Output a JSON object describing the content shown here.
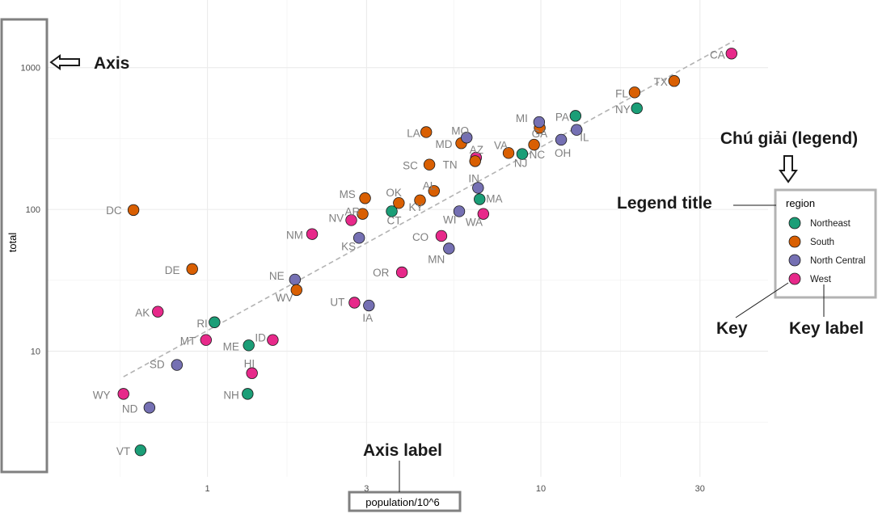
{
  "chart_data": {
    "type": "scatter",
    "xlabel": "population/10^6",
    "ylabel": "total",
    "x_scale": "log10",
    "y_scale": "log10",
    "x_ticks": [
      1,
      3,
      10,
      30
    ],
    "y_ticks": [
      10,
      100,
      1000
    ],
    "xlim": [
      0.33,
      48
    ],
    "ylim": [
      1.3,
      3000
    ],
    "grid": true,
    "trend_line": {
      "style": "dashed",
      "color": "#b3b3b3",
      "from": [
        0.56,
        6.6
      ],
      "to": [
        38,
        1550
      ]
    },
    "legend": {
      "title": "region",
      "position": "right",
      "entries": [
        {
          "name": "Northeast",
          "color": "#1b9e77"
        },
        {
          "name": "South",
          "color": "#d95f02"
        },
        {
          "name": "North Central",
          "color": "#7570b3"
        },
        {
          "name": "West",
          "color": "#e7298a"
        }
      ]
    },
    "points": [
      {
        "label": "AL",
        "region": "South",
        "x": 4.78,
        "y": 135
      },
      {
        "label": "AK",
        "region": "West",
        "x": 0.71,
        "y": 19
      },
      {
        "label": "AZ",
        "region": "West",
        "x": 6.39,
        "y": 232
      },
      {
        "label": "AR",
        "region": "South",
        "x": 2.92,
        "y": 93
      },
      {
        "label": "CA",
        "region": "West",
        "x": 37.3,
        "y": 1257
      },
      {
        "label": "CO",
        "region": "West",
        "x": 5.03,
        "y": 65
      },
      {
        "label": "CT",
        "region": "Northeast",
        "x": 3.57,
        "y": 97
      },
      {
        "label": "DE",
        "region": "South",
        "x": 0.9,
        "y": 38
      },
      {
        "label": "DC",
        "region": "South",
        "x": 0.6,
        "y": 99
      },
      {
        "label": "FL",
        "region": "South",
        "x": 19.1,
        "y": 669
      },
      {
        "label": "GA",
        "region": "South",
        "x": 9.92,
        "y": 376
      },
      {
        "label": "HI",
        "region": "West",
        "x": 1.36,
        "y": 7
      },
      {
        "label": "ID",
        "region": "West",
        "x": 1.57,
        "y": 12
      },
      {
        "label": "IL",
        "region": "North Central",
        "x": 12.8,
        "y": 364
      },
      {
        "label": "IN",
        "region": "North Central",
        "x": 6.48,
        "y": 142
      },
      {
        "label": "IA",
        "region": "North Central",
        "x": 3.05,
        "y": 21
      },
      {
        "label": "KS",
        "region": "North Central",
        "x": 2.85,
        "y": 63
      },
      {
        "label": "KY",
        "region": "South",
        "x": 4.34,
        "y": 116
      },
      {
        "label": "LA",
        "region": "South",
        "x": 4.53,
        "y": 351
      },
      {
        "label": "ME",
        "region": "Northeast",
        "x": 1.33,
        "y": 11
      },
      {
        "label": "MD",
        "region": "South",
        "x": 5.77,
        "y": 293
      },
      {
        "label": "MA",
        "region": "Northeast",
        "x": 6.55,
        "y": 118
      },
      {
        "label": "MI",
        "region": "North Central",
        "x": 9.88,
        "y": 413
      },
      {
        "label": "MN",
        "region": "North Central",
        "x": 5.3,
        "y": 53
      },
      {
        "label": "MS",
        "region": "South",
        "x": 2.97,
        "y": 120
      },
      {
        "label": "MO",
        "region": "North Central",
        "x": 5.99,
        "y": 321
      },
      {
        "label": "MT",
        "region": "West",
        "x": 0.99,
        "y": 12
      },
      {
        "label": "NE",
        "region": "North Central",
        "x": 1.83,
        "y": 32
      },
      {
        "label": "NV",
        "region": "West",
        "x": 2.7,
        "y": 84
      },
      {
        "label": "NH",
        "region": "Northeast",
        "x": 1.32,
        "y": 5
      },
      {
        "label": "NJ",
        "region": "Northeast",
        "x": 8.79,
        "y": 246
      },
      {
        "label": "NM",
        "region": "West",
        "x": 2.06,
        "y": 67
      },
      {
        "label": "NY",
        "region": "Northeast",
        "x": 19.4,
        "y": 517
      },
      {
        "label": "NC",
        "region": "South",
        "x": 9.54,
        "y": 286
      },
      {
        "label": "ND",
        "region": "North Central",
        "x": 0.67,
        "y": 4
      },
      {
        "label": "OH",
        "region": "North Central",
        "x": 11.5,
        "y": 310
      },
      {
        "label": "OK",
        "region": "South",
        "x": 3.75,
        "y": 111
      },
      {
        "label": "OR",
        "region": "West",
        "x": 3.83,
        "y": 36
      },
      {
        "label": "PA",
        "region": "Northeast",
        "x": 12.7,
        "y": 457
      },
      {
        "label": "RI",
        "region": "Northeast",
        "x": 1.05,
        "y": 16
      },
      {
        "label": "SC",
        "region": "South",
        "x": 4.63,
        "y": 207
      },
      {
        "label": "SD",
        "region": "North Central",
        "x": 0.81,
        "y": 8
      },
      {
        "label": "TN",
        "region": "South",
        "x": 6.35,
        "y": 219
      },
      {
        "label": "TX",
        "region": "South",
        "x": 25.1,
        "y": 805
      },
      {
        "label": "UT",
        "region": "West",
        "x": 2.76,
        "y": 22
      },
      {
        "label": "VT",
        "region": "Northeast",
        "x": 0.63,
        "y": 2
      },
      {
        "label": "VA",
        "region": "South",
        "x": 8.0,
        "y": 250
      },
      {
        "label": "WA",
        "region": "West",
        "x": 6.72,
        "y": 93
      },
      {
        "label": "WV",
        "region": "South",
        "x": 1.85,
        "y": 27
      },
      {
        "label": "WI",
        "region": "North Central",
        "x": 5.69,
        "y": 97
      },
      {
        "label": "WY",
        "region": "West",
        "x": 0.56,
        "y": 5
      }
    ]
  },
  "annotations": {
    "axis": "Axis",
    "legend_heading": "Chú giải (legend)",
    "legend_title": "Legend title",
    "axis_label": "Axis label",
    "key": "Key",
    "key_label": "Key label"
  }
}
